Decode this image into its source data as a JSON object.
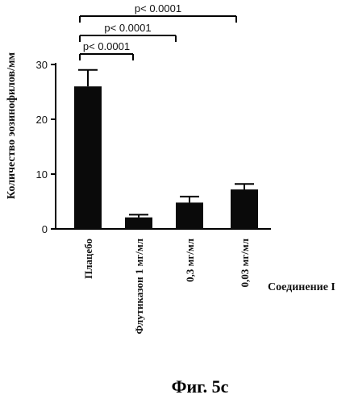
{
  "chart_data": {
    "type": "bar",
    "categories": [
      "Плацебо",
      "Флутиказон 1 мг/мл",
      "0,3 мг/мл",
      "0,03 мг/мл"
    ],
    "values": [
      26.0,
      2.1,
      4.8,
      7.2
    ],
    "errors": [
      3.0,
      0.5,
      1.1,
      1.0
    ],
    "ylabel": "Количество эозинофилов/мм",
    "ylim": [
      0,
      30
    ],
    "yticks": [
      "0",
      "10",
      "20",
      "30"
    ],
    "group_label": "Соединение I",
    "comparisons": [
      {
        "from": 0,
        "to": 1,
        "label": "p< 0.0001"
      },
      {
        "from": 0,
        "to": 2,
        "label": "p< 0.0001"
      },
      {
        "from": 0,
        "to": 3,
        "label": "p< 0.0001"
      }
    ],
    "legend": "none",
    "grid": false
  },
  "caption": "Фиг. 5c"
}
